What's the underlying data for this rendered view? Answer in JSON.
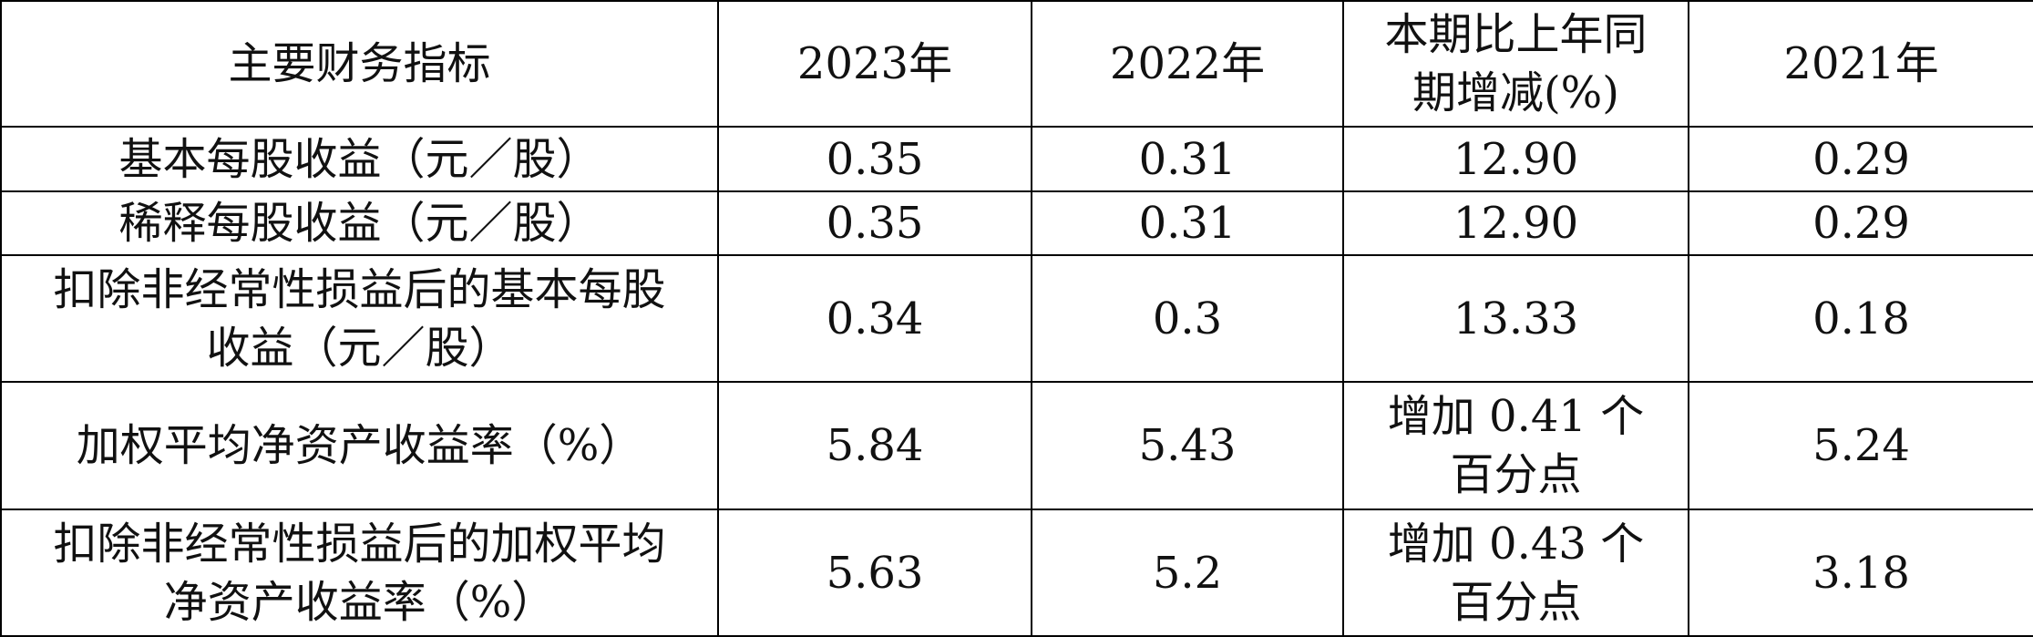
{
  "table": {
    "header": [
      "主要财务指标",
      "2023年",
      "2022年",
      "本期比上年同期增减(%)",
      "2021年"
    ],
    "rows": [
      [
        "基本每股收益（元／股）",
        "0.35",
        "0.31",
        "12.90",
        "0.29"
      ],
      [
        "稀释每股收益（元／股）",
        "0.35",
        "0.31",
        "12.90",
        "0.29"
      ],
      [
        "扣除非经常性损益后的基本每股收益（元／股）",
        "0.34",
        "0.3",
        "13.33",
        "0.18"
      ],
      [
        "加权平均净资产收益率（%）",
        "5.84",
        "5.43",
        "增加 0.41 个百分点",
        "5.24"
      ],
      [
        "扣除非经常性损益后的加权平均净资产收益率（%）",
        "5.63",
        "5.2",
        "增加 0.43 个百分点",
        "3.18"
      ]
    ]
  }
}
